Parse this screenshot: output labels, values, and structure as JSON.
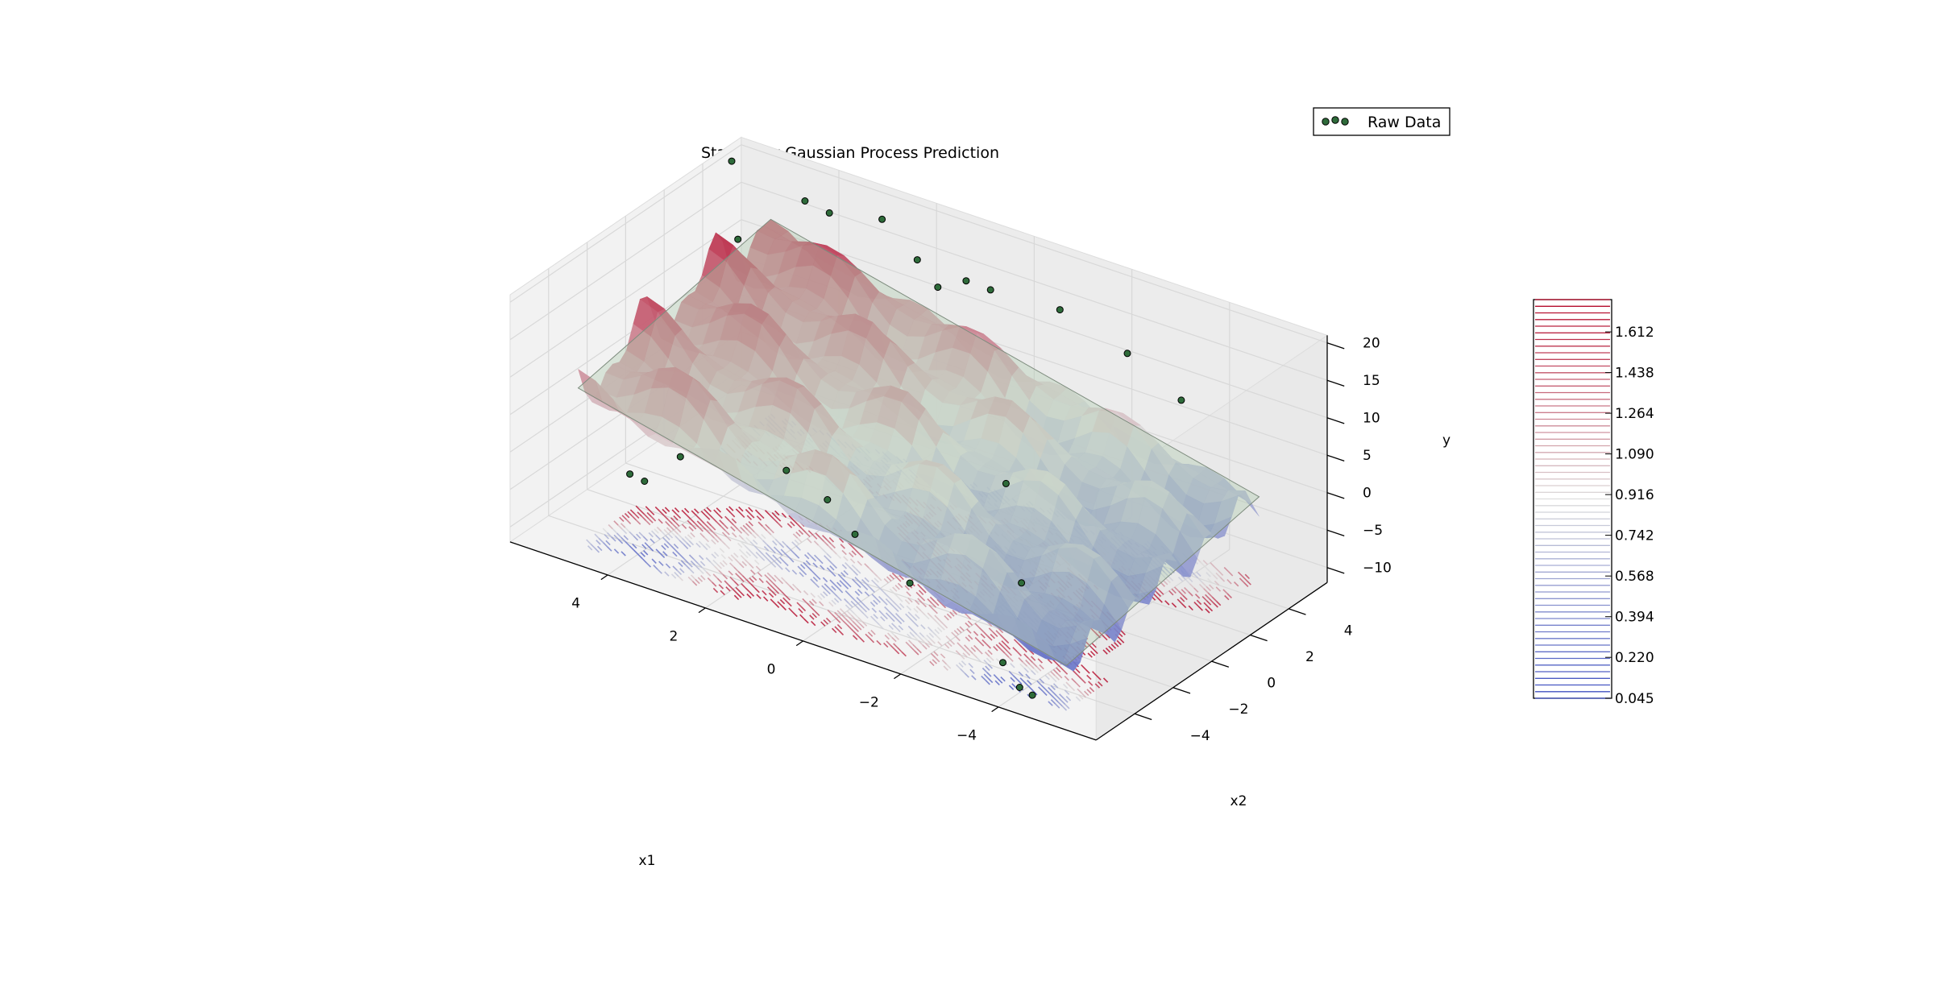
{
  "chart_data": {
    "type": "surface3d",
    "title": "Stationary Gaussian Process Prediction",
    "xlabel": "x1",
    "ylabel": "x2",
    "zlabel": "y",
    "xlim": [
      -6,
      6
    ],
    "ylim": [
      -6,
      6
    ],
    "zlim": [
      -12,
      21
    ],
    "x_ticks": [
      "−4",
      "−2",
      "0",
      "2",
      "4"
    ],
    "x_tick_values": [
      -4,
      -2,
      0,
      2,
      4
    ],
    "y_ticks": [
      "−4",
      "−2",
      "0",
      "2",
      "4"
    ],
    "y_tick_values": [
      -4,
      -2,
      0,
      2,
      4
    ],
    "z_ticks": [
      "−10",
      "−5",
      "0",
      "5",
      "10",
      "15",
      "20"
    ],
    "z_tick_values": [
      -10,
      -5,
      0,
      5,
      10,
      15,
      20
    ],
    "surface": {
      "description_model": "y = 1.5*x1 + 0.5*x2 + 4 + oscillations",
      "colormap": "coolwarm",
      "color_low": "#3b4cc0",
      "color_mid": "#dddddd",
      "color_high": "#b40426"
    },
    "plane": {
      "slope_x1": 1.5,
      "slope_x2": 0.5,
      "intercept": 4,
      "color": "#a8c8a8"
    },
    "raw_data": {
      "legend_label": "Raw Data",
      "marker_color": "#2e6b3a",
      "points": [
        [
          -4.3,
          -5.0,
          -11.5
        ],
        [
          -4.0,
          -4.9,
          -11.3
        ],
        [
          -3.5,
          -4.5,
          -9.8
        ],
        [
          -1.2,
          -3.5,
          -6.0
        ],
        [
          0.2,
          -2.8,
          -3.8
        ],
        [
          1.0,
          -2.2,
          -2.0
        ],
        [
          2.0,
          -1.8,
          -1.0
        ],
        [
          3.5,
          -3.5,
          0.5
        ],
        [
          3.8,
          -4.6,
          -1.5
        ],
        [
          4.1,
          -4.6,
          -1.2
        ],
        [
          -2.5,
          -1.0,
          -7.5
        ],
        [
          -1.0,
          2.0,
          -2.8
        ],
        [
          -3.8,
          4.0,
          11.0
        ],
        [
          -2.5,
          4.5,
          13.5
        ],
        [
          -1.0,
          4.8,
          15.5
        ],
        [
          0.5,
          5.0,
          14.5
        ],
        [
          1.0,
          5.0,
          14.6
        ],
        [
          1.5,
          4.8,
          13.0
        ],
        [
          2.0,
          5.0,
          15.2
        ],
        [
          2.8,
          5.2,
          18.5
        ],
        [
          3.8,
          5.0,
          17.5
        ],
        [
          4.3,
          5.0,
          18.0
        ],
        [
          5.2,
          3.8,
          13.0
        ],
        [
          5.8,
          5.0,
          20.0
        ]
      ]
    },
    "contour_colorbar": {
      "ticks": [
        "0.045",
        "0.220",
        "0.394",
        "0.568",
        "0.742",
        "0.916",
        "1.090",
        "1.264",
        "1.438",
        "1.612"
      ],
      "tick_values": [
        0.045,
        0.22,
        0.394,
        0.568,
        0.742,
        0.916,
        1.09,
        1.264,
        1.438,
        1.612
      ],
      "range": [
        0.045,
        1.75
      ],
      "n_levels": 60
    },
    "grid": true,
    "legend_position": "top-right"
  }
}
